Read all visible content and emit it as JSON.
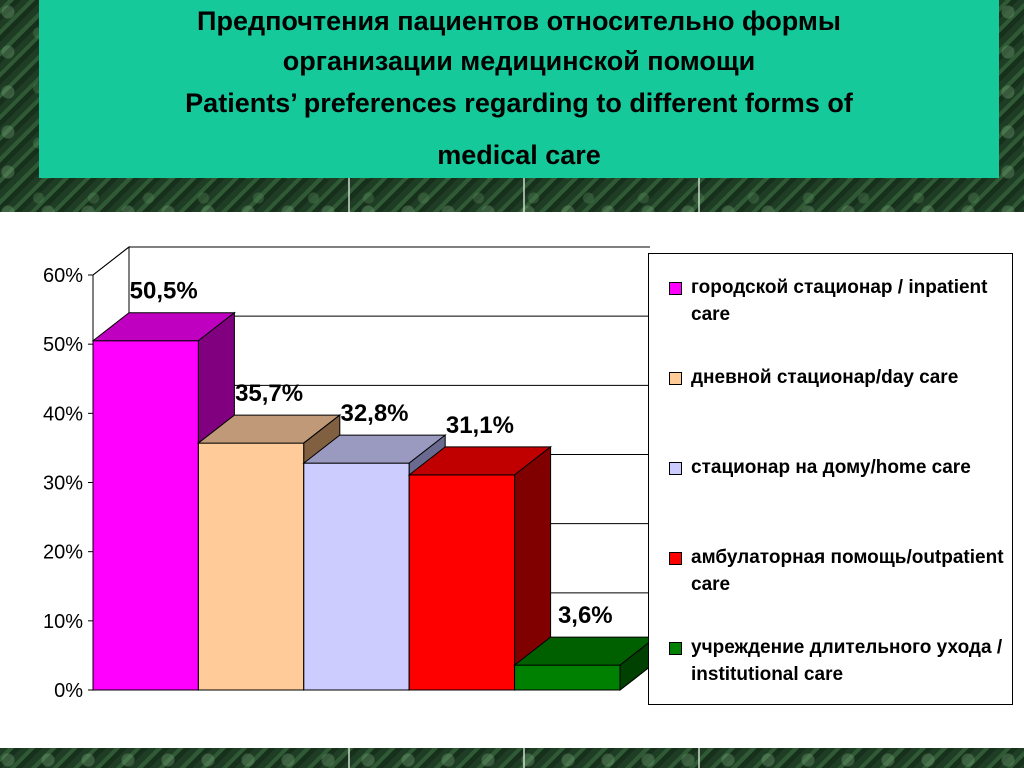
{
  "title": {
    "line1": "Предпочтения пациентов относительно формы",
    "line2": "организации медицинской помощи",
    "line3": "Patients’ preferences regarding to different forms of",
    "line4": "medical care"
  },
  "chart_data": {
    "type": "bar",
    "style": "3d-clustered",
    "ylim": [
      0,
      60
    ],
    "yticks": [
      "0%",
      "10%",
      "20%",
      "30%",
      "40%",
      "50%",
      "60%"
    ],
    "grid": true,
    "legend_position": "right",
    "series": [
      {
        "name": "городской стационар / inpatient care",
        "value": 50.5,
        "label": "50,5%",
        "color": "#ff00ff",
        "side": "#800080",
        "top": "#c000c0"
      },
      {
        "name": "дневной стационар/day care",
        "value": 35.7,
        "label": "35,7%",
        "color": "#ffcc99",
        "side": "#806040",
        "top": "#c09a78"
      },
      {
        "name": "стационар на дому/home care",
        "value": 32.8,
        "label": "32,8%",
        "color": "#ccccff",
        "side": "#6a6a90",
        "top": "#9a9ac0"
      },
      {
        "name": "амбулаторная помощь/outpatient care",
        "value": 31.1,
        "label": "31,1%",
        "color": "#ff0000",
        "side": "#800000",
        "top": "#c00000"
      },
      {
        "name": "учреждение длительного ухода / institutional care",
        "value": 3.6,
        "label": "3,6%",
        "color": "#008000",
        "side": "#004000",
        "top": "#006000"
      }
    ]
  }
}
